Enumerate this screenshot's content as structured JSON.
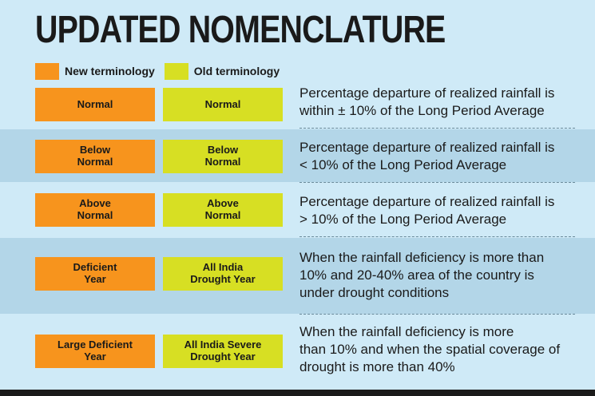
{
  "title": "UPDATED NOMENCLATURE",
  "legend": {
    "new_label": "New terminology",
    "old_label": "Old terminology",
    "new_color": "#f7941d",
    "old_color": "#d7df23"
  },
  "rows": [
    {
      "new": "Normal",
      "old": "Normal",
      "description": "Percentage departure of realized rainfall is\nwithin ± 10% of the Long Period Average"
    },
    {
      "new": "Below\nNormal",
      "old": "Below\nNormal",
      "description": "Percentage departure of realized rainfall is\n< 10% of the Long Period Average"
    },
    {
      "new": "Above\nNormal",
      "old": "Above\nNormal",
      "description": "Percentage departure of realized rainfall is\n> 10% of the Long Period Average"
    },
    {
      "new": "Deficient\nYear",
      "old": "All India\nDrought Year",
      "description": "When the rainfall deficiency is more than\n10% and 20-40% area of the country is\nunder drought conditions"
    },
    {
      "new": "Large Deficient\nYear",
      "old": "All India Severe\nDrought Year",
      "description": "When the rainfall deficiency is more\nthan 10% and when the spatial coverage of\ndrought is more than 40%"
    }
  ]
}
